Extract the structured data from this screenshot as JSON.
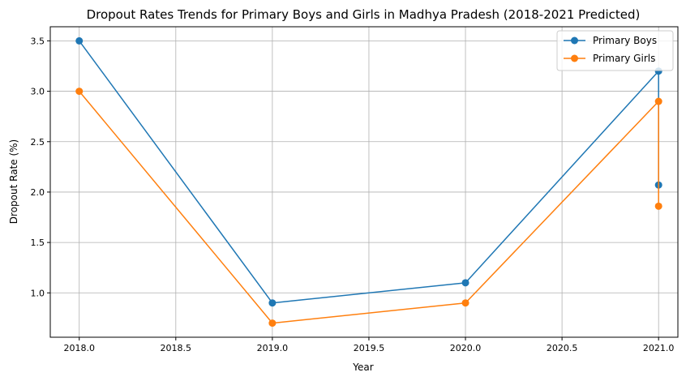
{
  "chart_data": {
    "type": "line",
    "title": "Dropout Rates Trends for Primary Boys and Girls in Madhya Pradesh (2018-2021 Predicted)",
    "xlabel": "Year",
    "ylabel": "Dropout Rate (%)",
    "xlim": [
      2017.85,
      2021.1
    ],
    "ylim": [
      0.56,
      3.64
    ],
    "xticks": [
      2018.0,
      2018.5,
      2019.0,
      2019.5,
      2020.0,
      2020.5,
      2021.0
    ],
    "xtick_labels": [
      "2018.0",
      "2018.5",
      "2019.0",
      "2019.5",
      "2020.0",
      "2020.5",
      "2021.0"
    ],
    "yticks": [
      1.0,
      1.5,
      2.0,
      2.5,
      3.0,
      3.5
    ],
    "ytick_labels": [
      "1.0",
      "1.5",
      "2.0",
      "2.5",
      "3.0",
      "3.5"
    ],
    "grid": true,
    "legend_position": "top-right",
    "series": [
      {
        "name": "Primary Boys",
        "color": "#1f77b4",
        "x": [
          2018,
          2019,
          2020,
          2021,
          2021
        ],
        "y": [
          3.5,
          0.9,
          1.1,
          3.2,
          2.07
        ]
      },
      {
        "name": "Primary Girls",
        "color": "#ff7f0e",
        "x": [
          2018,
          2019,
          2020,
          2021,
          2021
        ],
        "y": [
          3.0,
          0.7,
          0.9,
          2.9,
          1.86
        ]
      }
    ]
  }
}
